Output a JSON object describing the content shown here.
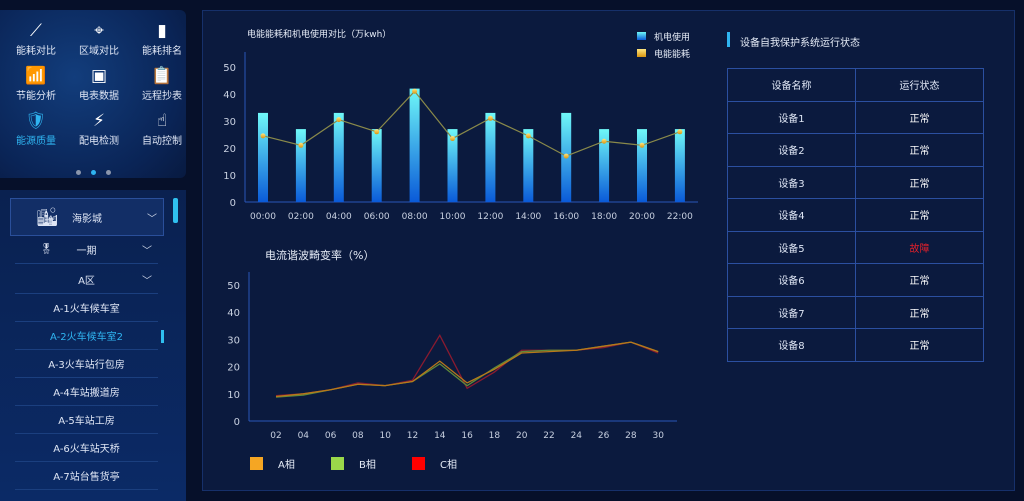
{
  "nav": {
    "items": [
      {
        "label": "能耗对比",
        "icon": "line-chart-icon",
        "glyph": "⟋"
      },
      {
        "label": "区域对比",
        "icon": "location-pin-icon",
        "glyph": "⌖"
      },
      {
        "label": "能耗排名",
        "icon": "bar-chart-icon",
        "glyph": "▮"
      },
      {
        "label": "节能分析",
        "icon": "growth-chart-icon",
        "glyph": "📶"
      },
      {
        "label": "电表数据",
        "icon": "meter-icon",
        "glyph": "▣"
      },
      {
        "label": "远程抄表",
        "icon": "clipboard-icon",
        "glyph": "📋"
      },
      {
        "label": "能源质量",
        "icon": "shield-icon",
        "glyph": "🛡",
        "active": true
      },
      {
        "label": "配电检测",
        "icon": "power-box-icon",
        "glyph": "⚡"
      },
      {
        "label": "自动控制",
        "icon": "remote-control-icon",
        "glyph": "☝"
      }
    ],
    "page": 2,
    "pages": 3
  },
  "tree": {
    "root": "海影城",
    "phase": "一期",
    "zone": "A区",
    "items": [
      "A-1火车候车室",
      "A-2火车候车室2",
      "A-3火车站行包房",
      "A-4车站搬道房",
      "A-5车站工房",
      "A-6火车站天桥",
      "A-7站台售货亭"
    ],
    "selected": 1
  },
  "chart_data": [
    {
      "type": "bar",
      "title": "电能能耗和机电使用对比（万kwh）",
      "categories": [
        "00:00",
        "02:00",
        "04:00",
        "06:00",
        "08:00",
        "10:00",
        "12:00",
        "14:00",
        "16:00",
        "18:00",
        "20:00",
        "22:00"
      ],
      "series": [
        {
          "name": "机电使用",
          "type": "bar",
          "values": [
            33,
            27,
            33,
            27,
            42,
            27,
            33,
            27,
            33,
            27,
            27,
            27
          ],
          "color": "#4fe6f5"
        },
        {
          "name": "电能能耗",
          "type": "line",
          "values": [
            24.5,
            21,
            30.5,
            26,
            41,
            23.5,
            31,
            24.5,
            17,
            22.5,
            21,
            26
          ],
          "color": "#f5c02a"
        }
      ],
      "ylim": [
        0,
        50
      ],
      "yticks": [
        0,
        10,
        20,
        30,
        40,
        50
      ],
      "legend": "top-right"
    },
    {
      "type": "line",
      "title": "电流谐波畸变率（%）",
      "categories": [
        "02",
        "04",
        "06",
        "08",
        "10",
        "12",
        "14",
        "16",
        "18",
        "20",
        "22",
        "24",
        "26",
        "28",
        "30"
      ],
      "series": [
        {
          "name": "A相",
          "color": "#f5a623",
          "values": [
            9,
            10,
            11.5,
            13.5,
            13,
            14.5,
            22,
            14,
            19,
            25,
            25.5,
            26,
            27.5,
            29,
            25.5
          ]
        },
        {
          "name": "B相",
          "color": "#9ad84a",
          "values": [
            8.8,
            9.5,
            11.5,
            13.5,
            13,
            14.5,
            21,
            13,
            19.5,
            25.5,
            26,
            26,
            27.5,
            29,
            25.5
          ]
        },
        {
          "name": "C相",
          "color": "#ff0000",
          "values": [
            9.3,
            10,
            11.5,
            14,
            13,
            15,
            31.5,
            12,
            18,
            26,
            26,
            26,
            27,
            29,
            25
          ]
        }
      ],
      "ylim": [
        0,
        50
      ],
      "yticks": [
        0,
        10,
        20,
        30,
        40,
        50
      ],
      "legend": "bottom-left"
    }
  ],
  "status": {
    "title": "设备自我保护系统运行状态",
    "headers": [
      "设备名称",
      "运行状态"
    ],
    "rows": [
      [
        "设备1",
        "正常"
      ],
      [
        "设备2",
        "正常"
      ],
      [
        "设备3",
        "正常"
      ],
      [
        "设备4",
        "正常"
      ],
      [
        "设备5",
        "故障"
      ],
      [
        "设备6",
        "正常"
      ],
      [
        "设备7",
        "正常"
      ],
      [
        "设备8",
        "正常"
      ]
    ],
    "colors": {
      "正常": "#ffffff",
      "故障": "#e0202a"
    }
  }
}
